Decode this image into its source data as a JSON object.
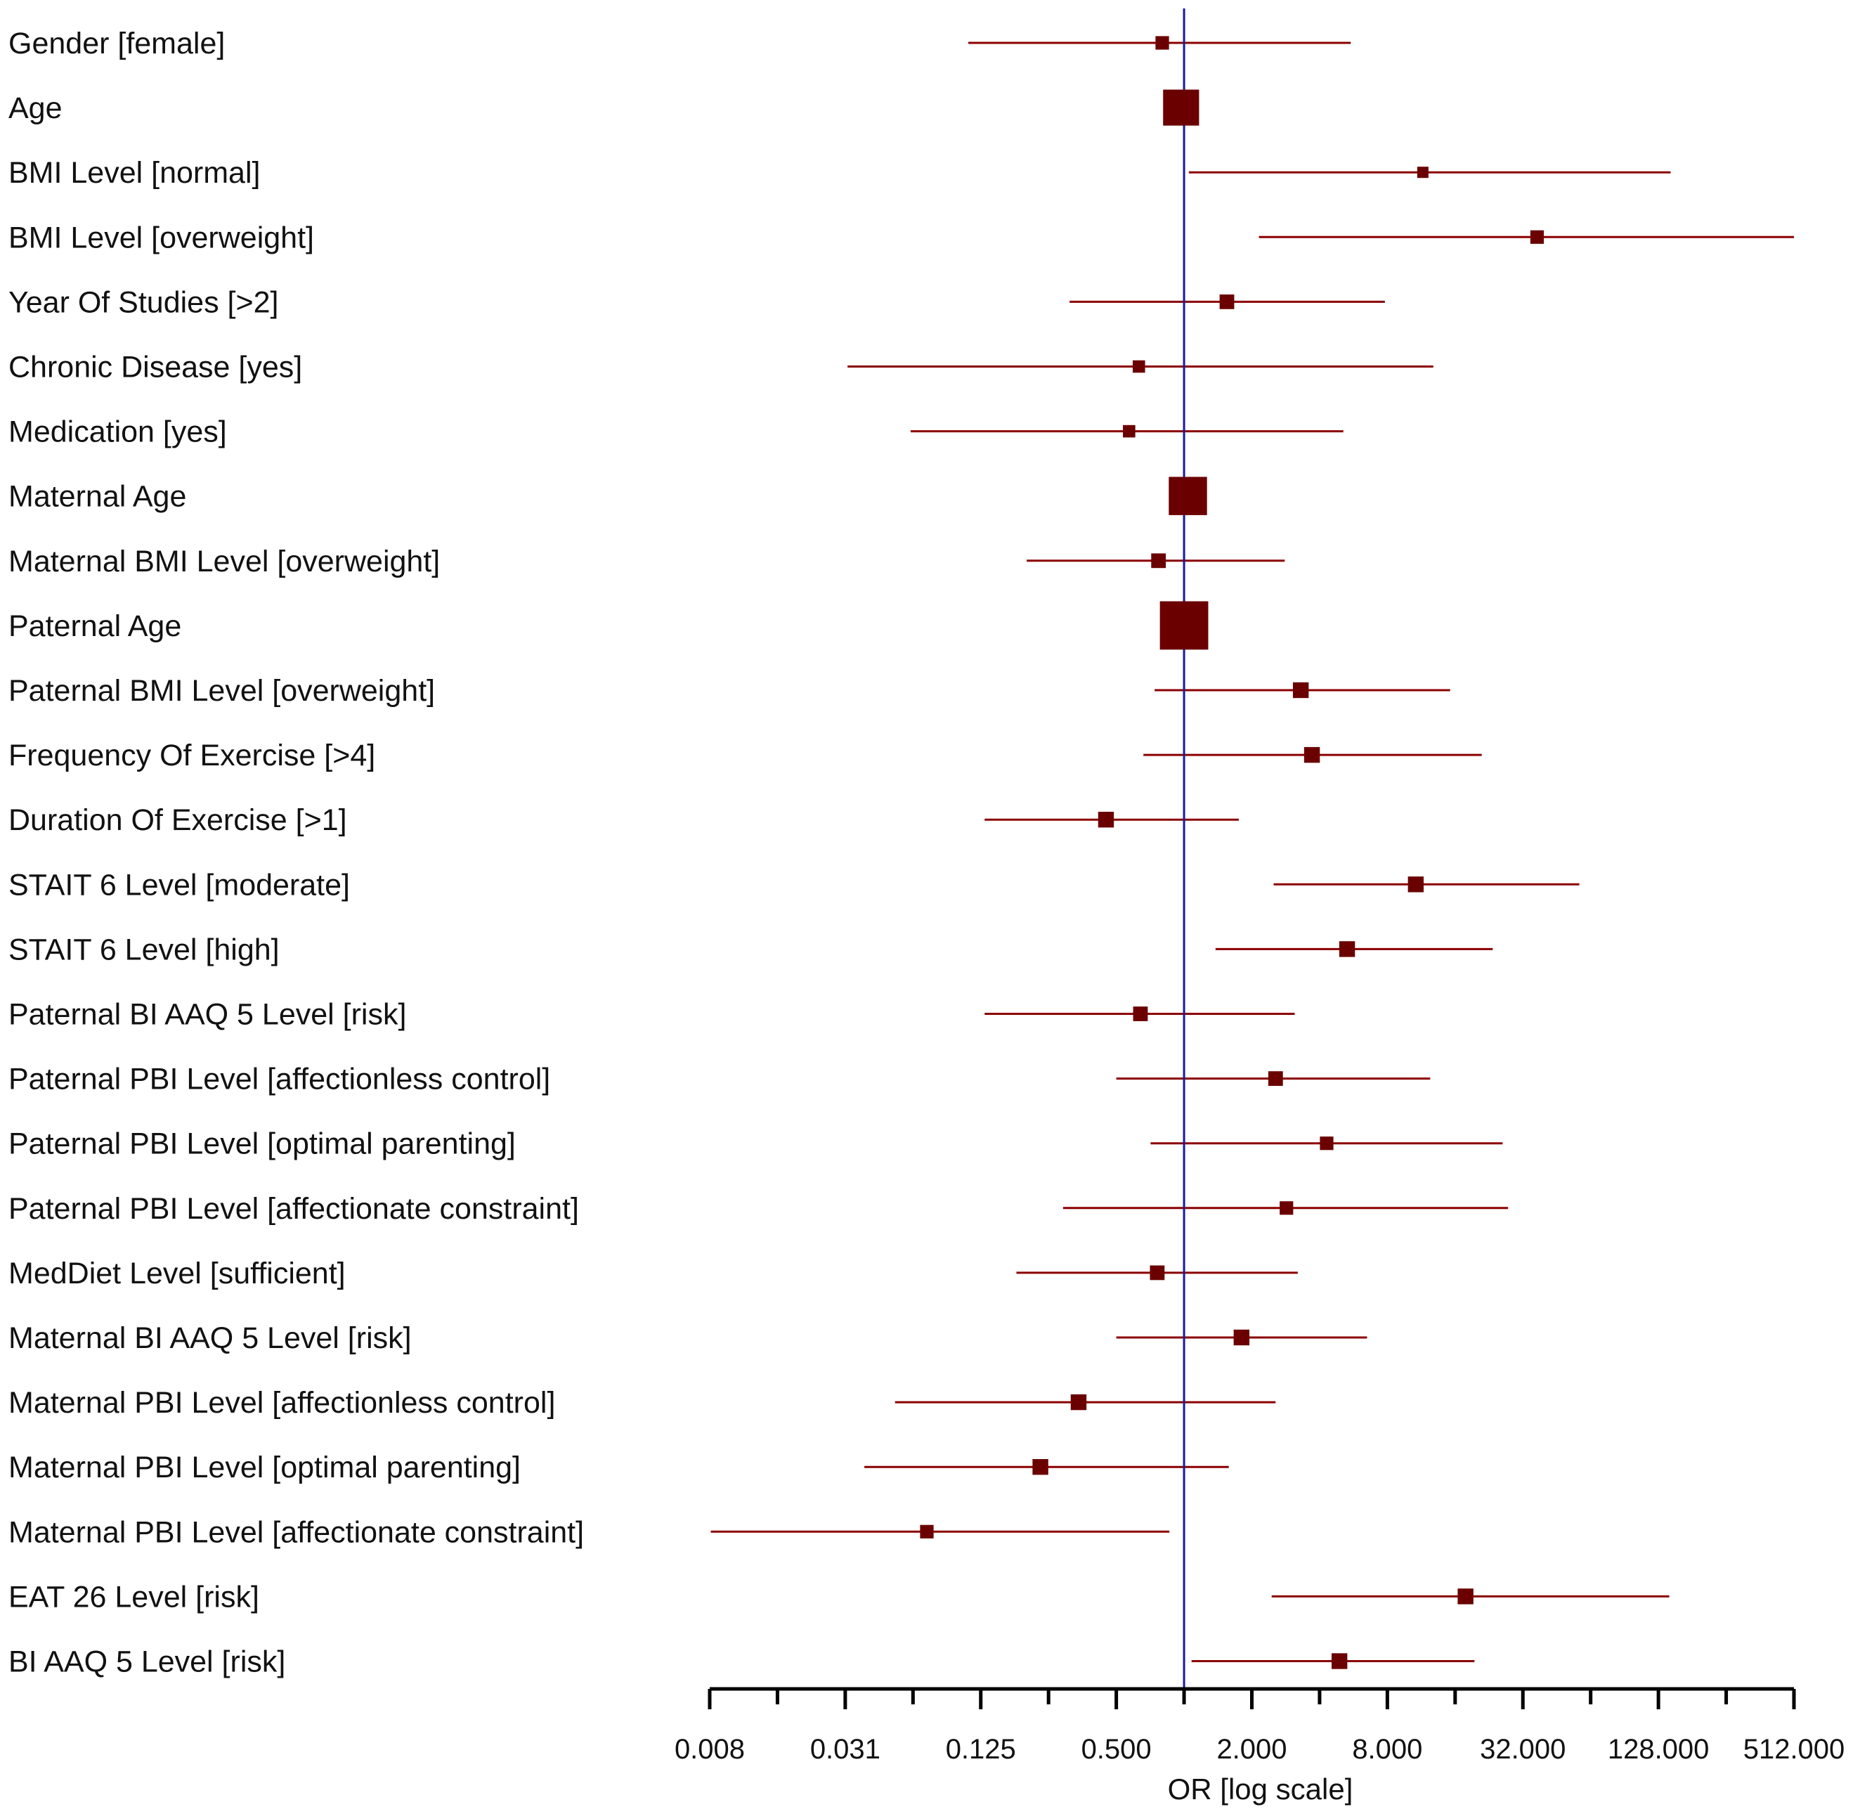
{
  "chart_data": {
    "type": "forest",
    "xlabel": "OR [log scale]",
    "x_scale": "log2",
    "xlim": [
      0.0078125,
      512
    ],
    "reference_line": 1,
    "tick_labels": [
      "0.008",
      "0.031",
      "0.125",
      "0.500",
      "2.000",
      "8.000",
      "32.000",
      "128.000",
      "512.000"
    ],
    "tick_values": [
      0.0078125,
      0.03125,
      0.125,
      0.5,
      2,
      8,
      32,
      128,
      512
    ],
    "colors": {
      "estimate": "#6b0000",
      "interval": "#8b0000",
      "reference": "#1a1a9c",
      "axis": "#000000"
    },
    "rows": [
      {
        "label": "Gender [female]",
        "or": 0.8,
        "lower": 0.11,
        "upper": 5.5,
        "weight": 1.2
      },
      {
        "label": "Age",
        "or": 0.97,
        "lower": 0.97,
        "upper": 0.97,
        "weight": 3.2
      },
      {
        "label": "BMI Level [normal]",
        "or": 11.5,
        "lower": 1.05,
        "upper": 145,
        "weight": 1.0
      },
      {
        "label": "BMI Level [overweight]",
        "or": 37,
        "lower": 2.15,
        "upper": 790,
        "weight": 1.2
      },
      {
        "label": "Year Of Studies [>2]",
        "or": 1.55,
        "lower": 0.31,
        "upper": 7.8,
        "weight": 1.3
      },
      {
        "label": "Chronic Disease [yes]",
        "or": 0.63,
        "lower": 0.032,
        "upper": 12.8,
        "weight": 1.1
      },
      {
        "label": "Medication [yes]",
        "or": 0.57,
        "lower": 0.061,
        "upper": 5.1,
        "weight": 1.1
      },
      {
        "label": "Maternal Age",
        "or": 1.04,
        "lower": 1.04,
        "upper": 1.04,
        "weight": 3.4
      },
      {
        "label": "Maternal BMI Level [overweight]",
        "or": 0.77,
        "lower": 0.2,
        "upper": 2.8,
        "weight": 1.3
      },
      {
        "label": "Paternal Age",
        "or": 1.0,
        "lower": 1.0,
        "upper": 1.0,
        "weight": 4.3
      },
      {
        "label": "Paternal BMI Level [overweight]",
        "or": 3.3,
        "lower": 0.74,
        "upper": 15.2,
        "weight": 1.4
      },
      {
        "label": "Frequency Of Exercise [>4]",
        "or": 3.7,
        "lower": 0.66,
        "upper": 21,
        "weight": 1.4
      },
      {
        "label": "Duration Of Exercise [>1]",
        "or": 0.45,
        "lower": 0.13,
        "upper": 1.75,
        "weight": 1.4
      },
      {
        "label": "STAIT 6 Level [moderate]",
        "or": 10.7,
        "lower": 2.5,
        "upper": 57,
        "weight": 1.4
      },
      {
        "label": "STAIT 6 Level [high]",
        "or": 5.3,
        "lower": 1.38,
        "upper": 23.5,
        "weight": 1.4
      },
      {
        "label": "Paternal BI AAQ 5 Level [risk]",
        "or": 0.64,
        "lower": 0.13,
        "upper": 3.1,
        "weight": 1.3
      },
      {
        "label": "Paternal PBI Level [affectionless control]",
        "or": 2.55,
        "lower": 0.5,
        "upper": 12.4,
        "weight": 1.3
      },
      {
        "label": "Paternal PBI Level [optimal parenting]",
        "or": 4.3,
        "lower": 0.71,
        "upper": 26,
        "weight": 1.2
      },
      {
        "label": "Paternal PBI Level [affectionate constraint]",
        "or": 2.85,
        "lower": 0.29,
        "upper": 27.5,
        "weight": 1.2
      },
      {
        "label": "MedDiet Level [sufficient]",
        "or": 0.76,
        "lower": 0.18,
        "upper": 3.2,
        "weight": 1.3
      },
      {
        "label": "Maternal BI AAQ 5 Level [risk]",
        "or": 1.8,
        "lower": 0.5,
        "upper": 6.5,
        "weight": 1.4
      },
      {
        "label": "Maternal PBI Level [affectionless control]",
        "or": 0.34,
        "lower": 0.052,
        "upper": 2.55,
        "weight": 1.4
      },
      {
        "label": "Maternal PBI Level [optimal parenting]",
        "or": 0.23,
        "lower": 0.038,
        "upper": 1.58,
        "weight": 1.4
      },
      {
        "label": "Maternal PBI Level [affectionate constraint]",
        "or": 0.072,
        "lower": 0.0079,
        "upper": 0.86,
        "weight": 1.2
      },
      {
        "label": "EAT 26 Level [risk]",
        "or": 17.8,
        "lower": 2.45,
        "upper": 143,
        "weight": 1.4
      },
      {
        "label": "BI AAQ 5 Level [risk]",
        "or": 4.9,
        "lower": 1.08,
        "upper": 19.5,
        "weight": 1.4
      }
    ]
  }
}
